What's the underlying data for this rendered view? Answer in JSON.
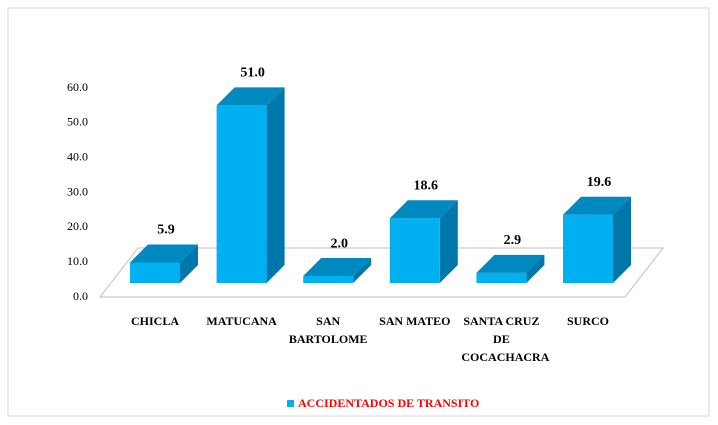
{
  "chart_data": {
    "type": "bar3d",
    "categories": [
      "CHICLA",
      "MATUCANA",
      "SAN BARTOLOME",
      "SAN MATEO",
      "SANTA CRUZ DE COCACHACRA",
      "SURCO"
    ],
    "series": [
      {
        "name": "ACCIDENTADOS DE TRANSITO",
        "color": "#00b0f0",
        "values": [
          5.9,
          51.0,
          2.0,
          18.6,
          2.9,
          19.6
        ],
        "value_labels": [
          "5.9",
          "51.0",
          "2.0",
          "18.6",
          "2.9",
          "19.6"
        ]
      }
    ],
    "ylim": [
      0,
      60
    ],
    "yticks": [
      {
        "value": 0,
        "label": "0.0"
      },
      {
        "value": 10,
        "label": "10.0"
      },
      {
        "value": 20,
        "label": "20.0"
      },
      {
        "value": 30,
        "label": "30.0"
      },
      {
        "value": 40,
        "label": "40.0"
      },
      {
        "value": 50,
        "label": "50.0"
      },
      {
        "value": 60,
        "label": "60.0"
      }
    ],
    "legend": "bottom"
  }
}
